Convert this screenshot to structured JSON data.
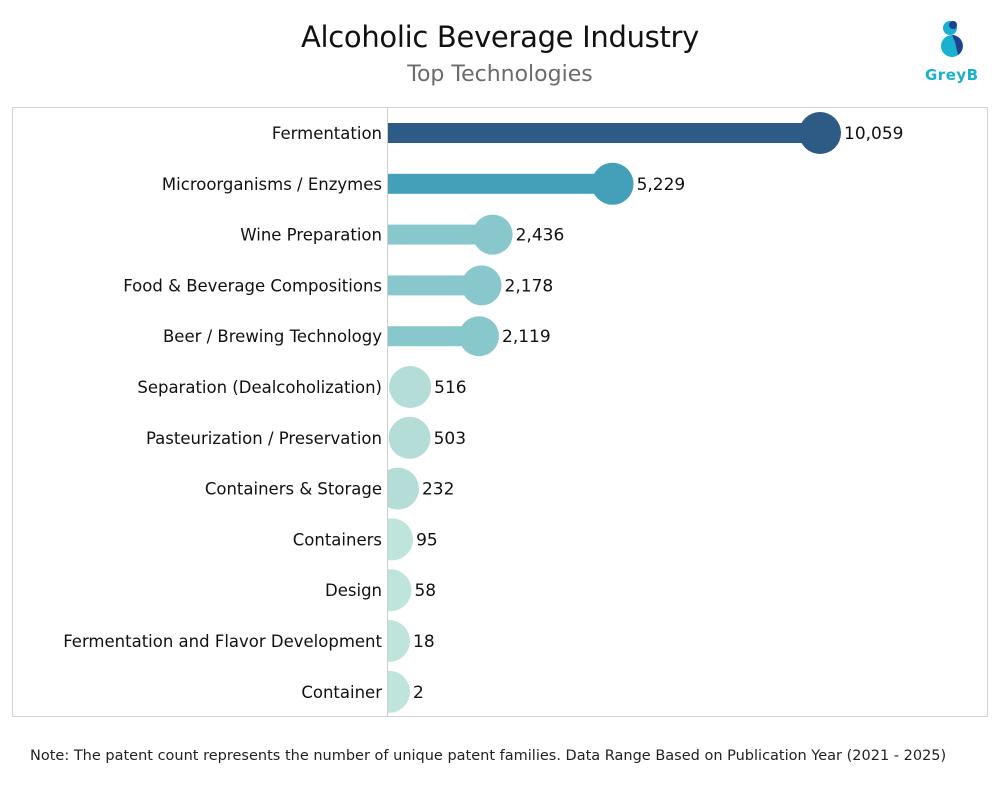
{
  "header": {
    "title": "Alcoholic Beverage Industry",
    "subtitle": "Top Technologies",
    "logo_text": "GreyB"
  },
  "colors": {
    "rank1": "#2e5b86",
    "rank2": "#44a0b8",
    "mid": "#88c8cd",
    "light": "#b3ddd6",
    "lightest": "#bfe4dc",
    "logo_cyan": "#1ab0cf",
    "logo_navy": "#1f3f93"
  },
  "chart_data": {
    "type": "bar",
    "style": "lollipop-horizontal",
    "title": "Alcoholic Beverage Industry",
    "subtitle": "Top Technologies",
    "xlabel": "",
    "ylabel": "",
    "grid": false,
    "legend": "none",
    "categories": [
      "Fermentation",
      "Microorganisms / Enzymes",
      "Wine Preparation",
      "Food & Beverage Compositions",
      "Beer / Brewing Technology",
      "Separation (Dealcoholization)",
      "Pasteurization / Preservation",
      "Containers & Storage",
      "Containers",
      "Design",
      "Fermentation and Flavor Development",
      "Container"
    ],
    "values": [
      10059,
      5229,
      2436,
      2178,
      2119,
      516,
      503,
      232,
      95,
      58,
      18,
      2
    ],
    "value_labels": [
      "10,059",
      "5,229",
      "2,436",
      "2,178",
      "2,119",
      "516",
      "503",
      "232",
      "95",
      "58",
      "18",
      "2"
    ],
    "xlim": [
      0,
      11000
    ]
  },
  "footer": {
    "note": "Note: The patent count represents the number of unique patent families. Data Range Based on Publication Year (2021 - 2025)"
  }
}
